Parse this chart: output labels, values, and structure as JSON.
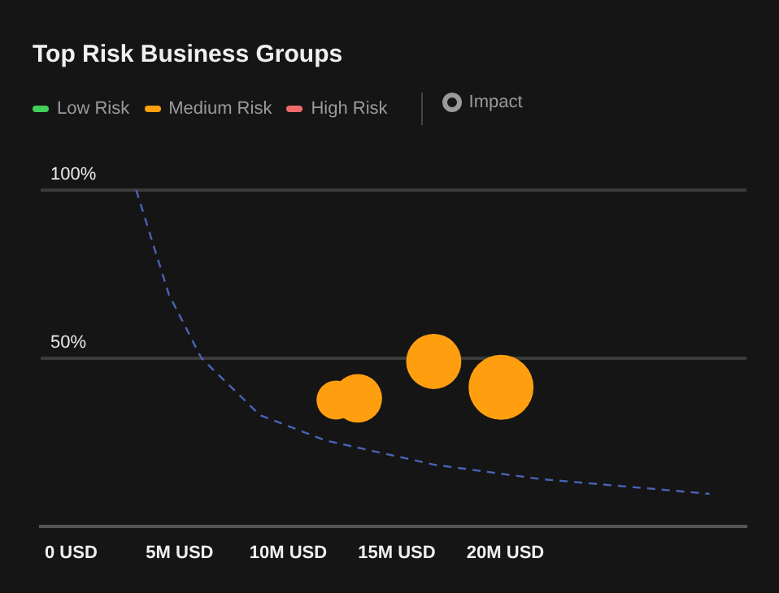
{
  "chart_data": {
    "type": "bubble",
    "title": "Top Risk Business Groups",
    "xlim": [
      -1.4,
      31.1
    ],
    "xticks": [
      {
        "value": 0,
        "label": "0 USD"
      },
      {
        "value": 5,
        "label": "5M USD"
      },
      {
        "value": 10,
        "label": "10M USD"
      },
      {
        "value": 15,
        "label": "15M USD"
      },
      {
        "value": 20,
        "label": "20M USD"
      }
    ],
    "ylim": [
      0,
      100
    ],
    "yticks": [
      {
        "value": 0,
        "label": null
      },
      {
        "value": 50,
        "label": "50%"
      },
      {
        "value": 100,
        "label": "100%"
      }
    ],
    "grid": "y",
    "legend": "top left",
    "series": [
      {
        "name": "Low Risk",
        "color": "#3fcf5a"
      },
      {
        "name": "Medium Risk",
        "color": "#ff9f0f",
        "x": [
          12.2,
          13.2,
          16.7,
          19.8
        ],
        "values": [
          37.5,
          38,
          49,
          41.3
        ],
        "sizes": [
          0.36,
          0.56,
          0.72,
          1
        ]
      },
      {
        "name": "High Risk",
        "color": "#f06a6a"
      },
      {
        "type": "line",
        "color": "#4a63b5",
        "line_style": "dashed",
        "x": [
          3.0,
          4.5,
          6.0,
          8.7,
          11.7,
          16.7,
          21.6,
          29.4
        ],
        "values": [
          100,
          69,
          50,
          33,
          25.5,
          18.3,
          14,
          9.6
        ]
      }
    ],
    "annotations": [
      "Impact"
    ]
  }
}
